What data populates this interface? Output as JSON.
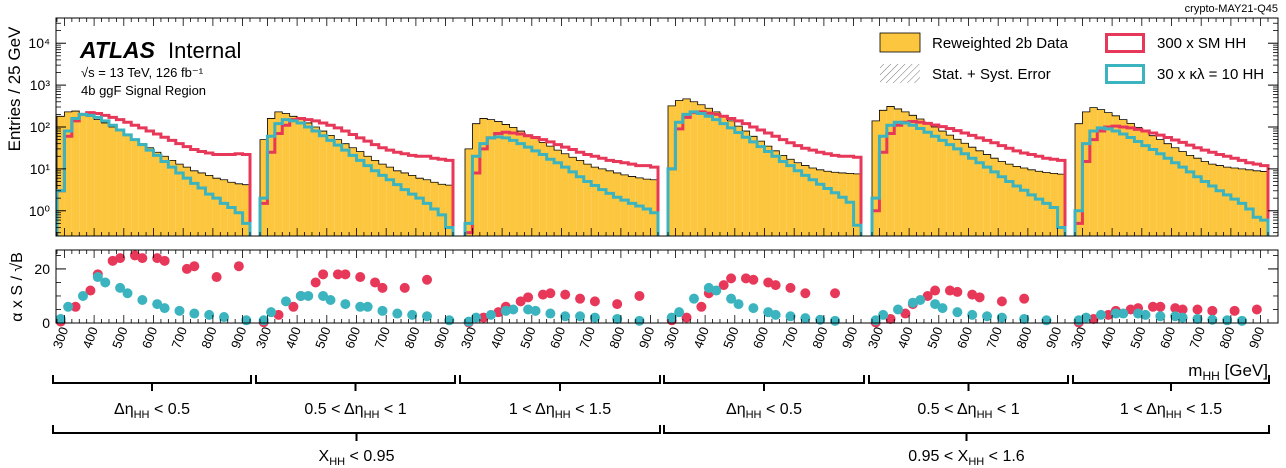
{
  "corner_tag": "crypto-MAY21-Q45",
  "atlas": {
    "brand": "ATLAS",
    "status": "Internal",
    "line1": "√s = 13 TeV, 126 fb⁻¹",
    "line2": "4b ggF Signal Region"
  },
  "legend": [
    {
      "label": "Reweighted 2b Data",
      "style": "fill",
      "color": "#fdc63f"
    },
    {
      "label": "300 x SM HH",
      "style": "line",
      "color": "#e8385a"
    },
    {
      "label": "Stat. + Syst. Error",
      "style": "hatch",
      "color": "#888888"
    },
    {
      "label": "30 x κλ = 10 HH",
      "style": "line",
      "color": "#3cb4bf"
    }
  ],
  "colors": {
    "background_fill": "#fdc63f",
    "sm": "#e8385a",
    "kl10": "#3cb4bf"
  },
  "icons": [
    "atlas-logo-text"
  ],
  "chart_data": [
    {
      "type": "bar",
      "log_y": true,
      "ylabel": "Entries / 25 GeV",
      "ylim": [
        0.25,
        40000
      ],
      "y_tick_labels": [
        "10⁰",
        "10¹",
        "10²",
        "10³",
        "10⁴"
      ],
      "y_tick_values": [
        1,
        10,
        100,
        1000,
        10000
      ],
      "x_tick_labels": [
        "300",
        "400",
        "500",
        "600",
        "700",
        "800",
        "900"
      ],
      "bin_edges_gev": [
        275,
        300,
        325,
        350,
        375,
        400,
        425,
        450,
        475,
        500,
        525,
        550,
        575,
        600,
        625,
        650,
        675,
        700,
        725,
        750,
        775,
        800,
        825,
        850,
        875,
        900,
        925
      ],
      "regions": [
        {
          "eta_label": "Δη < 0.5",
          "x_label": "X < 0.95",
          "background": [
            180,
            230,
            240,
            210,
            180,
            150,
            125,
            100,
            80,
            65,
            52,
            40,
            32,
            25,
            20,
            16,
            13,
            11,
            9,
            8,
            7,
            6,
            5.5,
            4.8,
            4.4,
            4.2
          ],
          "sm": [
            3,
            60,
            140,
            200,
            220,
            210,
            190,
            170,
            150,
            130,
            110,
            95,
            80,
            68,
            57,
            48,
            40,
            34,
            29,
            26,
            24,
            22,
            22,
            22,
            23,
            22
          ],
          "kl10": [
            3,
            80,
            160,
            200,
            190,
            170,
            140,
            110,
            85,
            65,
            50,
            38,
            28,
            21,
            15,
            11,
            8,
            6,
            4.5,
            3.5,
            2.5,
            2,
            1.5,
            1.2,
            0.9,
            0.5
          ]
        },
        {
          "eta_label": "0.5 < Δη < 1",
          "x_label": "X < 0.95",
          "background": [
            50,
            160,
            230,
            210,
            180,
            150,
            125,
            100,
            80,
            63,
            50,
            40,
            32,
            26,
            20,
            16,
            13,
            11,
            9,
            8,
            7,
            6,
            5.5,
            4.8,
            4.3,
            4.1
          ],
          "sm": [
            1.5,
            25,
            70,
            110,
            150,
            160,
            150,
            140,
            125,
            110,
            95,
            80,
            66,
            55,
            46,
            38,
            32,
            28,
            25,
            23,
            21,
            20,
            20,
            18,
            17,
            16
          ],
          "kl10": [
            2,
            60,
            120,
            150,
            140,
            125,
            100,
            80,
            62,
            48,
            37,
            28,
            21,
            16,
            12,
            9,
            7,
            5.5,
            4.2,
            3.2,
            2.5,
            2,
            1.5,
            1.1,
            0.8,
            0.4
          ]
        },
        {
          "eta_label": "1 < Δη < 1.5",
          "x_label": "X < 0.95",
          "background": [
            30,
            120,
            160,
            150,
            135,
            115,
            98,
            80,
            65,
            53,
            43,
            35,
            28,
            23,
            19,
            16,
            13,
            11,
            10,
            9,
            8,
            7.2,
            6.6,
            6.1,
            5.7,
            5.5
          ],
          "sm": [
            0.3,
            8,
            30,
            55,
            70,
            75,
            72,
            68,
            62,
            56,
            50,
            44,
            38,
            33,
            29,
            25,
            22,
            20,
            18,
            16,
            15,
            14,
            13,
            12,
            12,
            11
          ],
          "kl10": [
            0.5,
            20,
            40,
            55,
            58,
            55,
            48,
            40,
            33,
            27,
            22,
            17,
            14,
            11,
            8.5,
            6.5,
            5,
            4,
            3.2,
            2.6,
            2.1,
            1.8,
            1.5,
            1.3,
            1.1,
            0.9
          ]
        },
        {
          "eta_label": "Δη < 0.5",
          "x_label": "0.95 < X < 1.6",
          "background": [
            320,
            430,
            470,
            400,
            340,
            280,
            230,
            180,
            140,
            105,
            80,
            60,
            46,
            35,
            27,
            21,
            17,
            14,
            12,
            10.5,
            9.5,
            8.8,
            8.3,
            8,
            7.8,
            7.6
          ],
          "sm": [
            10,
            90,
            170,
            220,
            230,
            215,
            200,
            180,
            160,
            140,
            120,
            100,
            85,
            72,
            60,
            50,
            42,
            36,
            31,
            28,
            25,
            23,
            21,
            20,
            20,
            19
          ],
          "kl10": [
            10,
            130,
            200,
            230,
            210,
            180,
            150,
            120,
            95,
            74,
            57,
            44,
            34,
            26,
            20,
            15,
            12,
            9,
            7,
            5.5,
            4.3,
            3.4,
            2.7,
            2.1,
            1.6,
            0.45
          ]
        },
        {
          "eta_label": "0.5 < Δη < 1",
          "x_label": "0.95 < X < 1.6",
          "background": [
            140,
            250,
            310,
            270,
            230,
            190,
            155,
            125,
            100,
            80,
            64,
            51,
            41,
            33,
            27,
            22,
            18,
            15,
            13,
            11.5,
            10.5,
            9.5,
            8.8,
            8.2,
            7.8,
            7.5
          ],
          "sm": [
            1,
            25,
            70,
            110,
            130,
            135,
            130,
            122,
            112,
            102,
            92,
            82,
            72,
            63,
            55,
            48,
            42,
            36,
            31,
            27,
            24,
            22,
            20,
            18,
            17,
            16
          ],
          "kl10": [
            2,
            60,
            110,
            130,
            125,
            110,
            92,
            75,
            60,
            48,
            38,
            30,
            23,
            18,
            14,
            11,
            8.5,
            6.5,
            5,
            3.9,
            3.1,
            2.4,
            1.9,
            1.5,
            1.2,
            0.4
          ]
        },
        {
          "eta_label": "1 < Δη < 1.5",
          "x_label": "0.95 < X < 1.6",
          "background": [
            120,
            230,
            290,
            260,
            220,
            185,
            150,
            122,
            98,
            78,
            62,
            50,
            40,
            32,
            26,
            21,
            18,
            15,
            13,
            12,
            11,
            10.5,
            10,
            9.5,
            9,
            8.7
          ],
          "sm": [
            0.5,
            15,
            50,
            80,
            100,
            105,
            100,
            95,
            88,
            80,
            72,
            64,
            56,
            49,
            43,
            37,
            32,
            28,
            25,
            22,
            20,
            18,
            16,
            14,
            13,
            12
          ],
          "kl10": [
            1,
            40,
            80,
            95,
            90,
            80,
            68,
            56,
            45,
            36,
            29,
            23,
            18,
            14,
            11,
            8.5,
            6.5,
            5,
            3.9,
            3,
            2.4,
            1.9,
            1.5,
            1.1,
            0.7,
            0.6
          ]
        }
      ]
    },
    {
      "type": "scatter",
      "ylabel": "α x S / √B",
      "ylim": [
        0,
        27
      ],
      "y_tick_labels": [
        "0",
        "20"
      ],
      "y_tick_values": [
        0,
        20
      ],
      "xlabel": "mHH [GeV]",
      "x_tick_labels": [
        "300",
        "400",
        "500",
        "600",
        "700",
        "800",
        "900"
      ],
      "x_points_gev": [
        287.5,
        312.5,
        337.5,
        362.5,
        387.5,
        412.5,
        437.5,
        462.5,
        487.5,
        512.5,
        537.5,
        562.5,
        587.5,
        612.5,
        637.5,
        662.5,
        687.5,
        712.5,
        737.5,
        762.5,
        787.5,
        812.5,
        837.5,
        862.5,
        887.5,
        912.5
      ],
      "regions": [
        {
          "sm": [
            0.5,
            null,
            6,
            null,
            12,
            18,
            null,
            23,
            24,
            null,
            25,
            24,
            null,
            24,
            23,
            null,
            null,
            20,
            21,
            null,
            null,
            17,
            null,
            null,
            21,
            null
          ],
          "kl10": [
            1.5,
            6,
            null,
            10,
            null,
            17,
            15,
            null,
            13,
            11,
            null,
            8.5,
            null,
            7,
            5.5,
            null,
            4.5,
            null,
            3.5,
            null,
            3,
            null,
            2.2,
            null,
            null,
            1
          ]
        },
        {
          "sm": [
            0.3,
            null,
            3,
            null,
            6,
            10,
            null,
            15,
            18,
            null,
            18,
            18,
            null,
            17,
            null,
            15,
            13,
            null,
            null,
            13,
            null,
            null,
            16,
            null,
            null,
            null
          ],
          "kl10": [
            1,
            4,
            null,
            8,
            null,
            10,
            10,
            null,
            10,
            8.5,
            null,
            7,
            null,
            6,
            6,
            null,
            4.5,
            null,
            3.5,
            null,
            3,
            null,
            2.5,
            null,
            null,
            1
          ]
        },
        {
          "sm": [
            0.2,
            null,
            2,
            null,
            4,
            6,
            null,
            8,
            9.5,
            null,
            10.5,
            11,
            null,
            10.5,
            null,
            9,
            null,
            8,
            null,
            null,
            7,
            null,
            null,
            10,
            null,
            null
          ],
          "kl10": [
            0.5,
            2,
            null,
            3,
            null,
            4.5,
            5,
            null,
            5,
            4.5,
            null,
            3.5,
            null,
            2.5,
            null,
            2.5,
            null,
            2,
            null,
            null,
            1.5,
            null,
            null,
            0.8,
            null,
            null
          ]
        },
        {
          "sm": [
            1,
            null,
            2,
            null,
            6,
            11,
            null,
            14,
            16.5,
            null,
            16.5,
            16,
            null,
            15,
            14,
            null,
            13,
            null,
            11,
            null,
            null,
            null,
            11,
            null,
            null,
            null
          ],
          "kl10": [
            2,
            4,
            null,
            9,
            null,
            13,
            12,
            null,
            9,
            7,
            null,
            5.5,
            null,
            4,
            3,
            null,
            2.5,
            null,
            1.8,
            null,
            1.2,
            null,
            0.8,
            null,
            null,
            null
          ]
        },
        {
          "sm": [
            0.2,
            null,
            1.5,
            null,
            3.5,
            7,
            null,
            10,
            12,
            null,
            12,
            11.5,
            null,
            10.5,
            9.5,
            null,
            null,
            8,
            null,
            null,
            9,
            null,
            null,
            null,
            null,
            null
          ],
          "kl10": [
            1,
            3,
            null,
            5,
            null,
            7.5,
            8.5,
            null,
            7,
            5.5,
            null,
            4,
            null,
            3,
            null,
            2.5,
            null,
            2,
            null,
            null,
            1.5,
            null,
            null,
            1,
            null,
            null
          ]
        },
        {
          "sm": [
            0.2,
            null,
            1.5,
            null,
            3,
            4.5,
            null,
            5,
            5.5,
            null,
            6,
            6,
            null,
            5.5,
            5,
            null,
            5,
            null,
            4.5,
            null,
            null,
            4.5,
            null,
            null,
            5,
            null
          ],
          "kl10": [
            1,
            2,
            null,
            3,
            null,
            3.5,
            3.5,
            null,
            3.5,
            3,
            null,
            2.5,
            null,
            2.5,
            2,
            null,
            1.5,
            null,
            1.2,
            null,
            1,
            null,
            0.8,
            null,
            null,
            null
          ]
        }
      ]
    }
  ],
  "groups_eta": [
    "Δη",
    "0.5 < Δη < 1",
    "1 < Δη < 1.5"
  ],
  "axis_texts": {
    "eta": [
      {
        "pre": "Δη",
        "sub": "HH",
        "post": " < 0.5"
      },
      {
        "pre": "0.5 < Δη",
        "sub": "HH",
        "post": " < 1"
      },
      {
        "pre": "1 < Δη",
        "sub": "HH",
        "post": " < 1.5"
      },
      {
        "pre": "Δη",
        "sub": "HH",
        "post": " < 0.5"
      },
      {
        "pre": "0.5 < Δη",
        "sub": "HH",
        "post": " < 1"
      },
      {
        "pre": "1 < Δη",
        "sub": "HH",
        "post": " < 1.5"
      }
    ],
    "xhh": [
      {
        "pre": "X",
        "sub": "HH",
        "post": " < 0.95"
      },
      {
        "pre": "0.95 < X",
        "sub": "HH",
        "post": " < 1.6"
      }
    ],
    "mhh": {
      "pre": "m",
      "sub": "HH",
      "post": " [GeV]"
    }
  }
}
